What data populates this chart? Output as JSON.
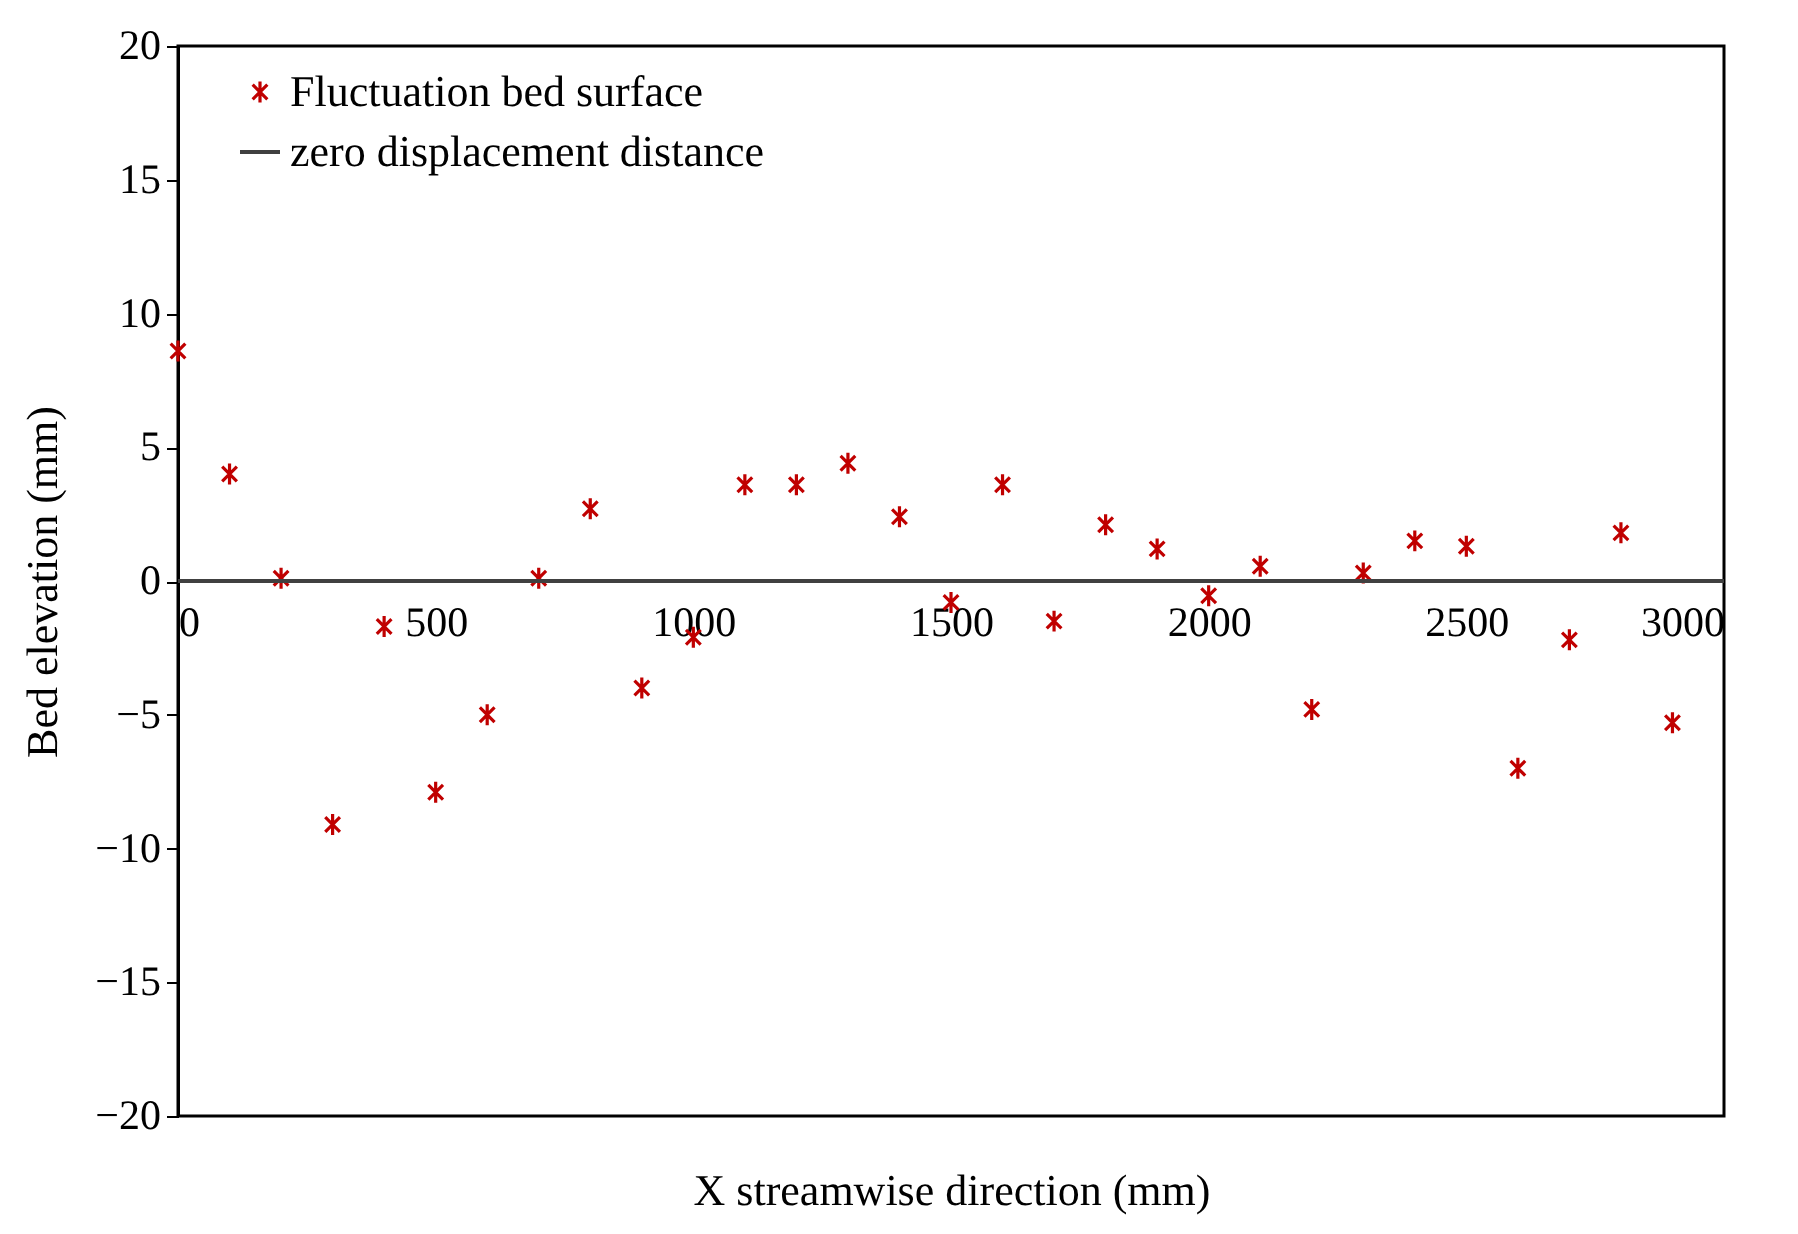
{
  "chart_data": {
    "type": "scatter",
    "xlabel": "X streamwise direction (mm)",
    "ylabel": "Bed elevation (mm)",
    "x": [
      0,
      100,
      200,
      300,
      400,
      500,
      600,
      700,
      800,
      900,
      1000,
      1100,
      1200,
      1300,
      1400,
      1500,
      1600,
      1700,
      1800,
      1900,
      2000,
      2100,
      2200,
      2300,
      2400,
      2500,
      2600,
      2700,
      2800,
      2900
    ],
    "series": [
      {
        "name": "Fluctuation bed surface",
        "color": "#c00000",
        "values": [
          8.6,
          4.0,
          0.1,
          -9.1,
          -1.7,
          -7.9,
          -5.0,
          0.1,
          2.7,
          -4.0,
          -2.1,
          3.6,
          3.6,
          4.4,
          2.4,
          -0.8,
          3.6,
          -1.5,
          2.1,
          1.2,
          -0.55,
          0.55,
          -4.8,
          0.3,
          1.5,
          1.3,
          -7.0,
          -2.2,
          1.8,
          -5.3
        ]
      }
    ],
    "ref_lines": [
      {
        "axis": "y",
        "value": 0,
        "label": "zero displacement distance",
        "color": "#404040"
      }
    ],
    "xlim": [
      0,
      3000
    ],
    "xticks": [
      0,
      500,
      1000,
      1500,
      2000,
      2500,
      3000
    ],
    "ylim": [
      -20,
      20
    ],
    "yticks": [
      -20,
      -15,
      -10,
      -5,
      0,
      5,
      10,
      15,
      20
    ],
    "grid": false,
    "legend": "top left",
    "marker": "cross"
  }
}
